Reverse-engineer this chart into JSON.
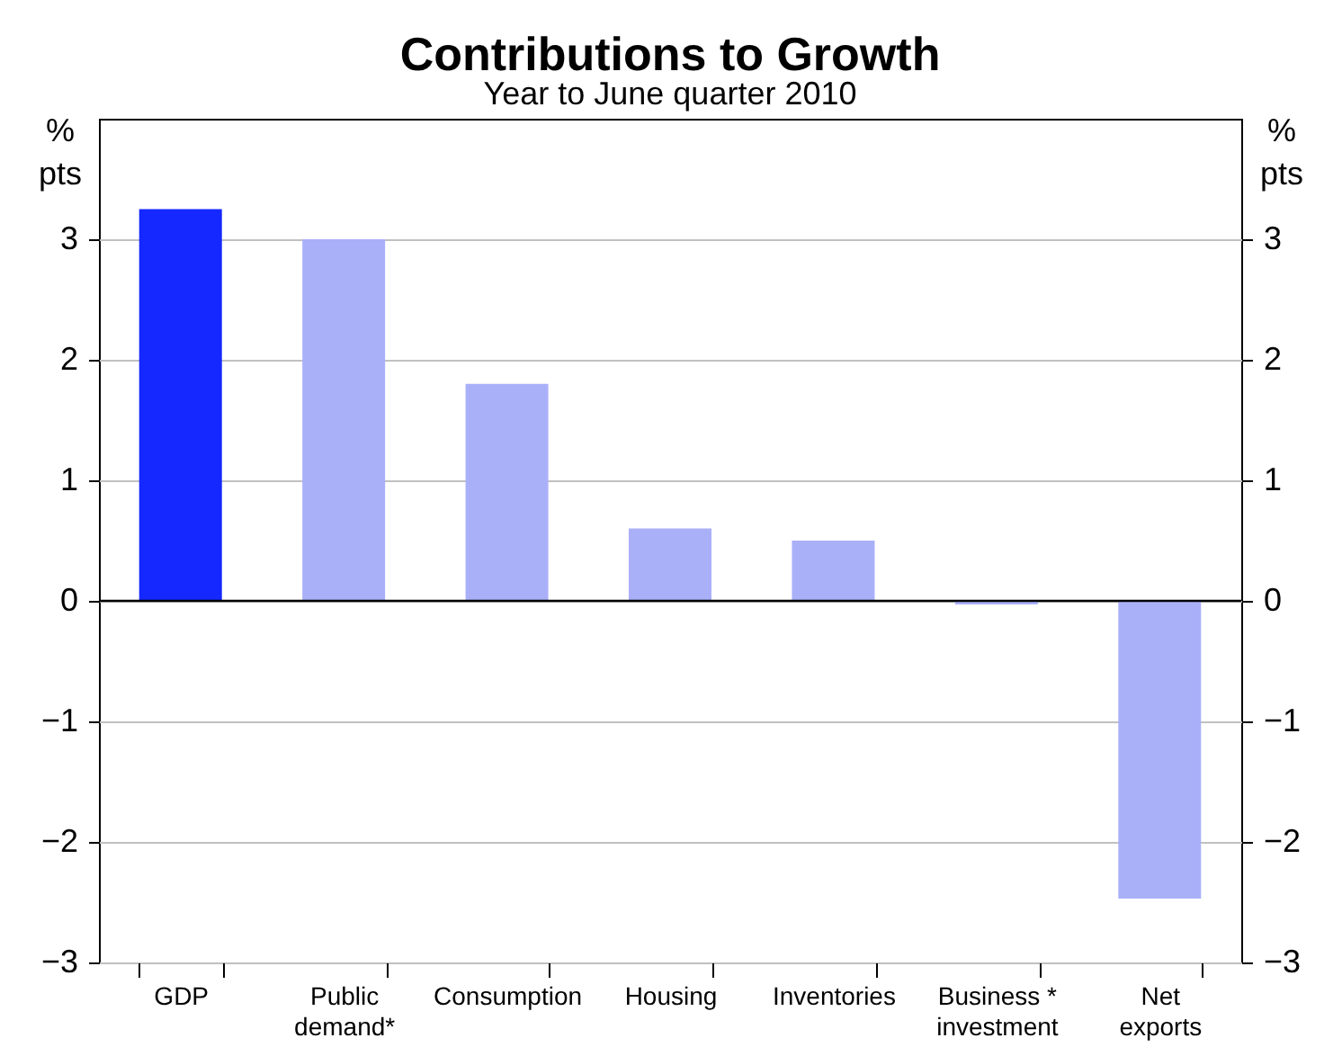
{
  "chart_data": {
    "type": "bar",
    "title": "Contributions to Growth",
    "subtitle": "Year to June quarter 2010",
    "categories": [
      "GDP",
      "Public\ndemand*",
      "Consumption",
      "Housing",
      "Inventories",
      "Business *\ninvestment",
      "Net\nexports"
    ],
    "values": [
      3.25,
      3.0,
      1.8,
      0.6,
      0.5,
      -0.03,
      -2.47
    ],
    "colors": [
      "#1428ff",
      "#aab0f8",
      "#aab0f8",
      "#aab0f8",
      "#aab0f8",
      "#aab0f8",
      "#aab0f8"
    ],
    "ylabel": "%\npts",
    "y2label": "%\npts",
    "ylim": [
      -3,
      4
    ],
    "yticks": [
      -3,
      -2,
      -1,
      0,
      1,
      2,
      3
    ],
    "y2lim": [
      -3,
      4
    ],
    "y2ticks": [
      -3,
      -2,
      -1,
      0,
      1,
      2,
      3
    ],
    "ref_lines": [
      {
        "axis": "y",
        "value": 0,
        "color": "#000000"
      }
    ],
    "grid": "y"
  }
}
